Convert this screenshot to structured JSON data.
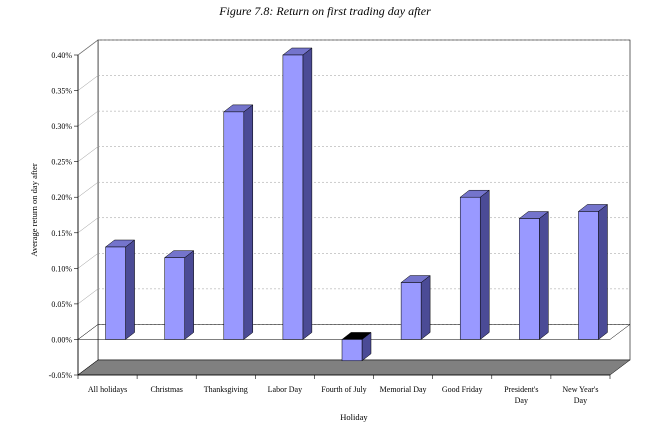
{
  "chart_data": {
    "type": "bar",
    "title": "Figure 7.8: Return on first trading day after",
    "xlabel": "Holiday",
    "ylabel": "Average return on day after",
    "categories": [
      [
        "All holidays"
      ],
      [
        "Christmas"
      ],
      [
        "Thanksgiving"
      ],
      [
        "Labor Day"
      ],
      [
        "Fourth of July"
      ],
      [
        "Memorial Day"
      ],
      [
        "Good Friday"
      ],
      [
        "President's",
        "Day"
      ],
      [
        "New Year's",
        "Day"
      ]
    ],
    "values": [
      0.13,
      0.115,
      0.32,
      0.4,
      -0.03,
      0.08,
      0.2,
      0.17,
      0.18
    ],
    "ylim": [
      -0.05,
      0.4
    ],
    "yticks": [
      "0.40%",
      "0.35%",
      "0.30%",
      "0.25%",
      "0.20%",
      "0.15%",
      "0.10%",
      "0.05%",
      "0.00%",
      "-0.05%"
    ],
    "ytick_values": [
      0.4,
      0.35,
      0.3,
      0.25,
      0.2,
      0.15,
      0.1,
      0.05,
      0.0,
      -0.05
    ],
    "grid": true,
    "style": "3d",
    "colors": {
      "bar_front": "#9999ff",
      "bar_side": "#4b4b96",
      "bar_top": "#7474cc",
      "floor": "#808080",
      "wall": "#ffffff",
      "gridline": "#999999"
    }
  }
}
